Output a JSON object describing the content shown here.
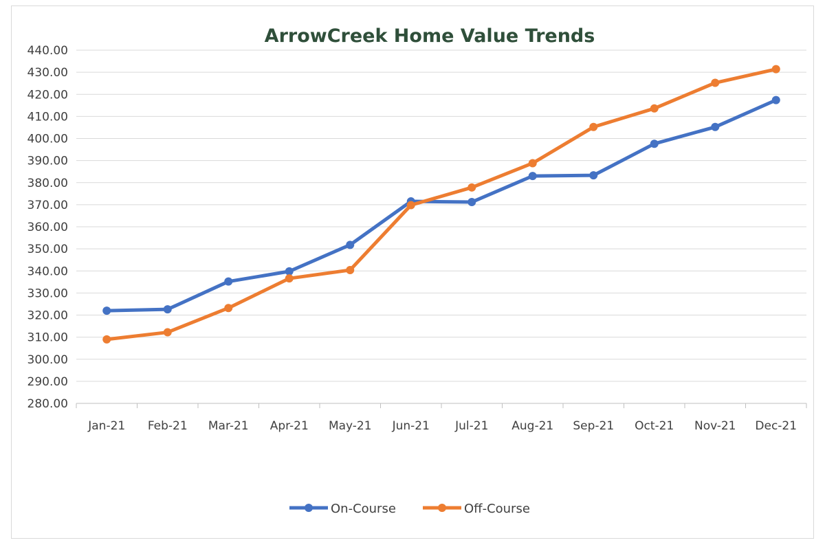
{
  "chart_data": {
    "type": "line",
    "title": "ArrowCreek Home Value Trends",
    "xlabel": "",
    "ylabel": "",
    "categories": [
      "Jan-21",
      "Feb-21",
      "Mar-21",
      "Apr-21",
      "May-21",
      "Jun-21",
      "Jul-21",
      "Aug-21",
      "Sep-21",
      "Oct-21",
      "Nov-21",
      "Dec-21"
    ],
    "ylim": [
      280,
      440
    ],
    "ystep": 10,
    "ytick_labels": [
      "280.00",
      "290.00",
      "300.00",
      "310.00",
      "320.00",
      "330.00",
      "340.00",
      "350.00",
      "360.00",
      "370.00",
      "380.00",
      "390.00",
      "400.00",
      "410.00",
      "420.00",
      "430.00",
      "440.00"
    ],
    "grid": true,
    "legend_position": "bottom",
    "series": [
      {
        "name": "On-Course",
        "color": "#4472c4",
        "values": [
          322,
          322.6,
          335.2,
          339.8,
          351.8,
          371.5,
          371.2,
          383,
          383.3,
          397.6,
          405.2,
          417.4
        ]
      },
      {
        "name": "Off-Course",
        "color": "#ed7d31",
        "values": [
          309,
          312.2,
          323.2,
          336.6,
          340.4,
          369.8,
          377.8,
          388.8,
          405.2,
          413.6,
          425.2,
          431.4
        ]
      }
    ]
  }
}
